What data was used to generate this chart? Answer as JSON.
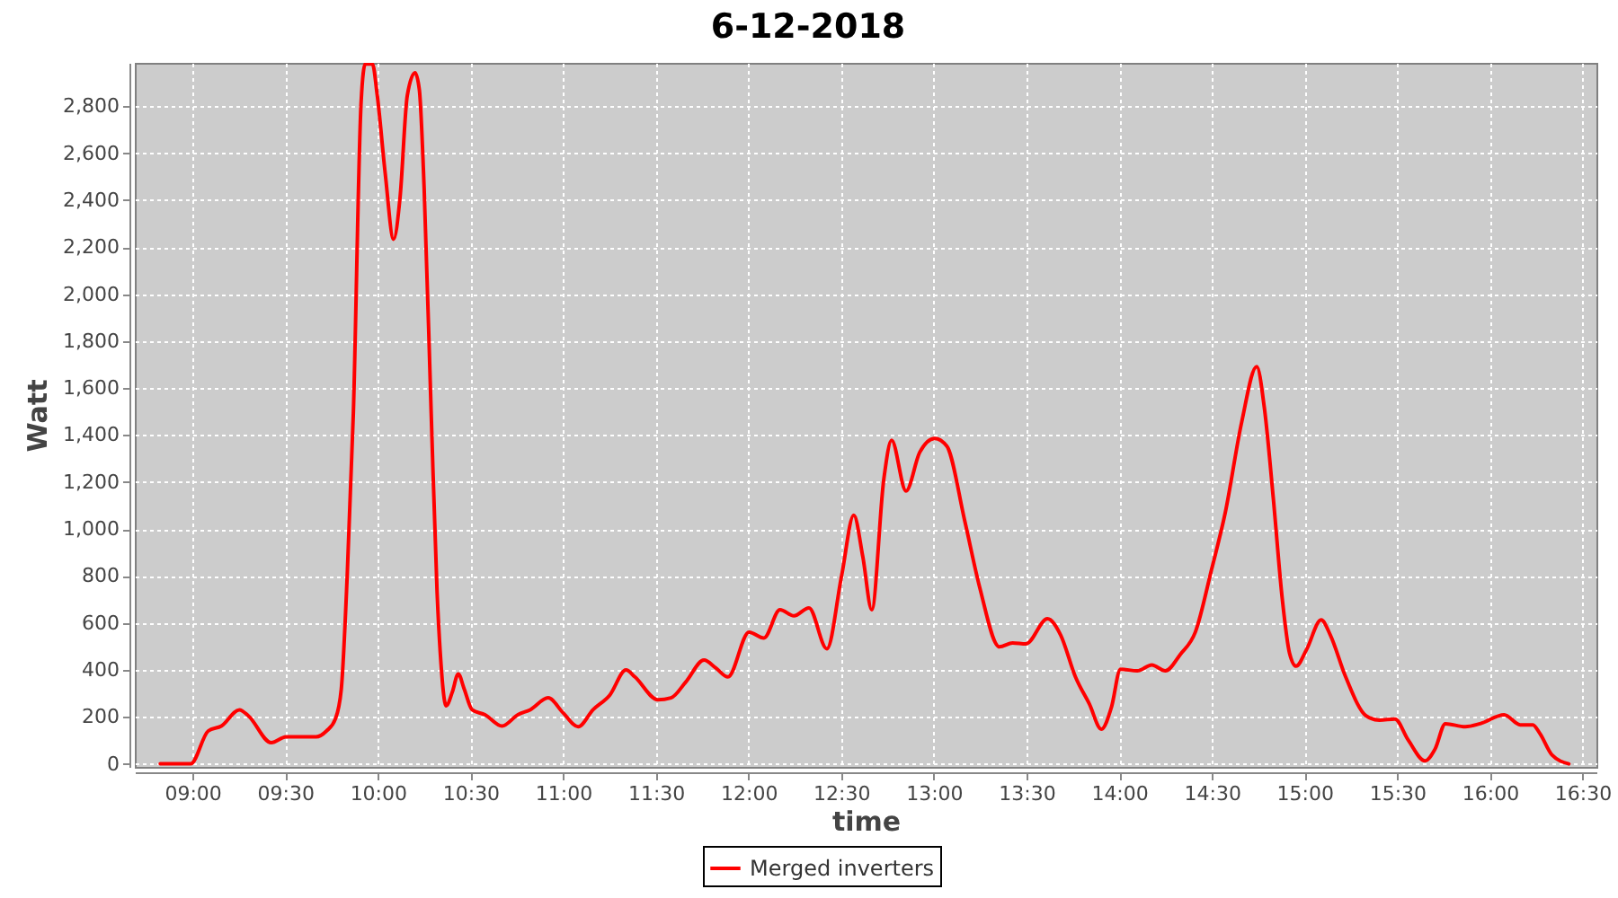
{
  "chart_data": {
    "type": "line",
    "title": "6-12-2018",
    "xlabel": "time",
    "ylabel": "Watt",
    "xlim": [
      8.689,
      16.575
    ],
    "ylim": [
      -13,
      2985
    ],
    "xticks": [
      {
        "value": 9,
        "label": "09:00"
      },
      {
        "value": 9.5,
        "label": "09:30"
      },
      {
        "value": 10,
        "label": "10:00"
      },
      {
        "value": 10.5,
        "label": "10:30"
      },
      {
        "value": 11,
        "label": "11:00"
      },
      {
        "value": 11.5,
        "label": "11:30"
      },
      {
        "value": 12,
        "label": "12:00"
      },
      {
        "value": 12.5,
        "label": "12:30"
      },
      {
        "value": 13,
        "label": "13:00"
      },
      {
        "value": 13.5,
        "label": "13:30"
      },
      {
        "value": 14,
        "label": "14:00"
      },
      {
        "value": 14.5,
        "label": "14:30"
      },
      {
        "value": 15,
        "label": "15:00"
      },
      {
        "value": 15.5,
        "label": "15:30"
      },
      {
        "value": 16,
        "label": "16:00"
      },
      {
        "value": 16.5,
        "label": "16:30"
      }
    ],
    "yticks": [
      0,
      200,
      400,
      600,
      800,
      {
        "value": 1000,
        "label": "1,000"
      },
      {
        "value": 1200,
        "label": "1,200"
      },
      {
        "value": 1400,
        "label": "1,400"
      },
      {
        "value": 1600,
        "label": "1,600"
      },
      {
        "value": 1800,
        "label": "1,800"
      },
      {
        "value": 2000,
        "label": "2,000"
      },
      {
        "value": 2200,
        "label": "2,200"
      },
      {
        "value": 2400,
        "label": "2,400"
      },
      {
        "value": 2600,
        "label": "2,600"
      },
      {
        "value": 2800,
        "label": "2,800"
      }
    ],
    "grid": true,
    "legend": "bottom",
    "series": [
      {
        "name": "Merged inverters",
        "color": "#ff0000",
        "x": [
          8.826,
          8.99,
          9.085,
          9.156,
          9.253,
          9.302,
          9.425,
          9.505,
          9.577,
          9.667,
          9.723,
          9.771,
          9.803,
          9.835,
          9.868,
          9.91,
          9.932,
          9.971,
          9.997,
          10.04,
          10.085,
          10.12,
          10.159,
          10.201,
          10.224,
          10.25,
          10.288,
          10.32,
          10.337,
          10.369,
          10.402,
          10.434,
          10.466,
          10.509,
          10.579,
          10.67,
          10.757,
          10.822,
          10.919,
          11.0,
          11.081,
          11.161,
          11.252,
          11.339,
          11.387,
          11.511,
          11.582,
          11.663,
          11.76,
          11.824,
          11.889,
          12.003,
          12.083,
          12.17,
          12.245,
          12.326,
          12.423,
          12.503,
          12.568,
          12.617,
          12.665,
          12.73,
          12.772,
          12.85,
          12.924,
          13.005,
          13.07,
          13.167,
          13.247,
          13.354,
          13.425,
          13.497,
          13.613,
          13.684,
          13.764,
          13.839,
          13.904,
          13.959,
          14.007,
          14.098,
          14.176,
          14.249,
          14.331,
          14.411,
          14.499,
          14.573,
          14.661,
          14.742,
          14.783,
          14.831,
          14.88,
          14.919,
          14.955,
          15.01,
          15.09,
          15.139,
          15.222,
          15.333,
          15.404,
          15.488,
          15.559,
          15.65,
          15.705,
          15.76,
          15.867,
          15.948,
          16.077,
          16.164,
          16.232,
          16.271,
          16.335,
          16.426
        ],
        "values": [
          0,
          0,
          140,
          161,
          230,
          204,
          90,
          115,
          115,
          115,
          140,
          191,
          319,
          804,
          1493,
          2820,
          2980,
          2980,
          2846,
          2514,
          2234,
          2412,
          2846,
          2943,
          2871,
          2450,
          1493,
          727,
          472,
          247,
          306,
          383,
          319,
          230,
          209,
          161,
          210,
          230,
          281,
          217,
          158,
          230,
          293,
          400,
          370,
          273,
          281,
          350,
          442,
          408,
          370,
          561,
          536,
          656,
          630,
          664,
          490,
          804,
          1059,
          881,
          656,
          1212,
          1378,
          1162,
          1327,
          1386,
          1353,
          1034,
          753,
          498,
          515,
          511,
          618,
          549,
          370,
          255,
          148,
          243,
          403,
          396,
          421,
          396,
          467,
          561,
          829,
          1072,
          1455,
          1692,
          1518,
          1136,
          702,
          472,
          416,
          485,
          613,
          549,
          370,
          204,
          186,
          191,
          102,
          13,
          64,
          171,
          158,
          171,
          209,
          166,
          166,
          128,
          38,
          0
        ]
      }
    ]
  }
}
